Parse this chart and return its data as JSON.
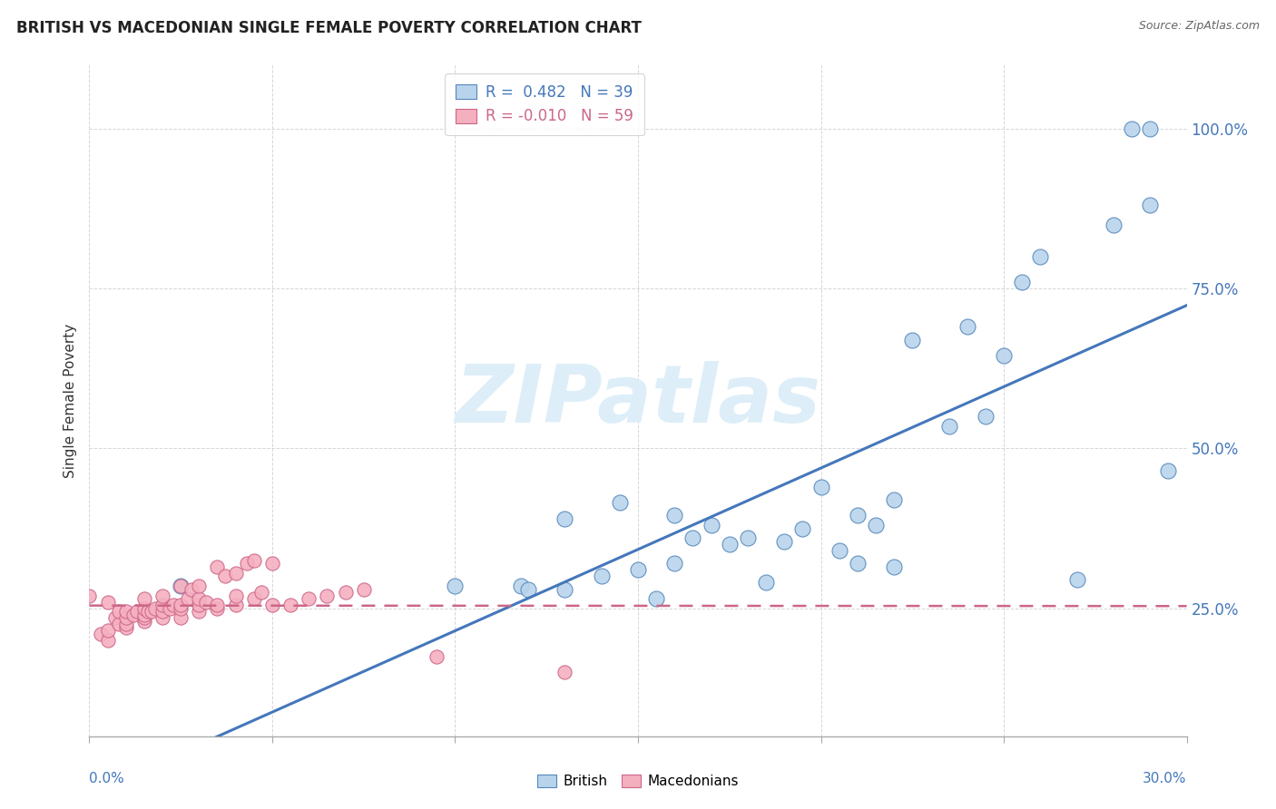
{
  "title": "BRITISH VS MACEDONIAN SINGLE FEMALE POVERTY CORRELATION CHART",
  "source": "Source: ZipAtlas.com",
  "ylabel": "Single Female Poverty",
  "xlim": [
    0.0,
    0.3
  ],
  "ylim": [
    0.05,
    1.1
  ],
  "ytick_values": [
    0.25,
    0.5,
    0.75,
    1.0
  ],
  "ytick_labels": [
    "25.0%",
    "50.0%",
    "75.0%",
    "100.0%"
  ],
  "xtick_values": [
    0.0,
    0.05,
    0.1,
    0.15,
    0.2,
    0.25,
    0.3
  ],
  "british_color": "#b8d4ec",
  "british_edge_color": "#5588bb",
  "macedonian_color": "#f5b0c0",
  "macedonian_edge_color": "#cc6688",
  "british_line_color": "#4477bb",
  "macedonian_line_color": "#cc6688",
  "r_british": "0.482",
  "n_british": "39",
  "r_macedonian": "-0.010",
  "n_macedonian": "59",
  "watermark_color": "#ddeef8",
  "british_x": [
    0.025,
    0.1,
    0.118,
    0.12,
    0.13,
    0.13,
    0.14,
    0.145,
    0.15,
    0.155,
    0.16,
    0.16,
    0.165,
    0.17,
    0.175,
    0.18,
    0.185,
    0.19,
    0.195,
    0.2,
    0.205,
    0.21,
    0.21,
    0.215,
    0.22,
    0.22,
    0.225,
    0.235,
    0.24,
    0.245,
    0.25,
    0.255,
    0.26,
    0.27,
    0.28,
    0.285,
    0.29,
    0.29,
    0.295
  ],
  "british_y": [
    0.285,
    0.285,
    0.285,
    0.28,
    0.28,
    0.39,
    0.3,
    0.415,
    0.31,
    0.265,
    0.32,
    0.395,
    0.36,
    0.38,
    0.35,
    0.36,
    0.29,
    0.355,
    0.375,
    0.44,
    0.34,
    0.32,
    0.395,
    0.38,
    0.315,
    0.42,
    0.67,
    0.535,
    0.69,
    0.55,
    0.645,
    0.76,
    0.8,
    0.295,
    0.85,
    1.0,
    1.0,
    0.88,
    0.465
  ],
  "macedonian_x": [
    0.0,
    0.003,
    0.005,
    0.005,
    0.005,
    0.007,
    0.008,
    0.008,
    0.01,
    0.01,
    0.01,
    0.01,
    0.012,
    0.013,
    0.015,
    0.015,
    0.015,
    0.015,
    0.015,
    0.016,
    0.017,
    0.018,
    0.02,
    0.02,
    0.02,
    0.02,
    0.022,
    0.023,
    0.025,
    0.025,
    0.025,
    0.025,
    0.027,
    0.028,
    0.03,
    0.03,
    0.03,
    0.03,
    0.032,
    0.035,
    0.035,
    0.035,
    0.037,
    0.04,
    0.04,
    0.04,
    0.043,
    0.045,
    0.045,
    0.047,
    0.05,
    0.05,
    0.055,
    0.06,
    0.065,
    0.07,
    0.075,
    0.095,
    0.13
  ],
  "macedonian_y": [
    0.27,
    0.21,
    0.2,
    0.215,
    0.26,
    0.235,
    0.225,
    0.245,
    0.22,
    0.225,
    0.235,
    0.245,
    0.24,
    0.245,
    0.23,
    0.235,
    0.24,
    0.25,
    0.265,
    0.245,
    0.245,
    0.25,
    0.235,
    0.245,
    0.255,
    0.27,
    0.25,
    0.255,
    0.235,
    0.25,
    0.255,
    0.285,
    0.265,
    0.28,
    0.245,
    0.255,
    0.265,
    0.285,
    0.26,
    0.25,
    0.255,
    0.315,
    0.3,
    0.255,
    0.27,
    0.305,
    0.32,
    0.265,
    0.325,
    0.275,
    0.255,
    0.32,
    0.255,
    0.265,
    0.27,
    0.275,
    0.28,
    0.175,
    0.15
  ]
}
